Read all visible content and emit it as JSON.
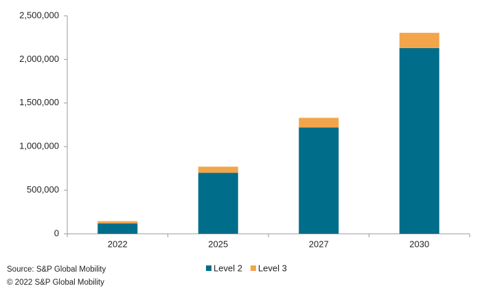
{
  "chart_data": {
    "type": "stacked_bar",
    "categories": [
      "2022",
      "2025",
      "2027",
      "2030"
    ],
    "series": [
      {
        "name": "Level 2",
        "color": "#006e8a",
        "values": [
          120000,
          700000,
          1220000,
          2130000
        ]
      },
      {
        "name": "Level 3",
        "color": "#f2a54a",
        "values": [
          25000,
          70000,
          110000,
          175000
        ]
      }
    ],
    "ylim": [
      0,
      2500000
    ],
    "yticks": [
      0,
      {
        "value": 500000,
        "label": "500,000"
      },
      {
        "value": 1000000,
        "label": "1,000,000"
      },
      {
        "value": 1500000,
        "label": "1,500,000"
      },
      {
        "value": 2000000,
        "label": "2,000,000"
      },
      {
        "value": 2500000,
        "label": "2,500,000"
      }
    ],
    "grid": false,
    "legend": "bottom",
    "source": "Source: S&P Global Mobility",
    "copyright": "© 2022  S&P Global Mobility"
  }
}
